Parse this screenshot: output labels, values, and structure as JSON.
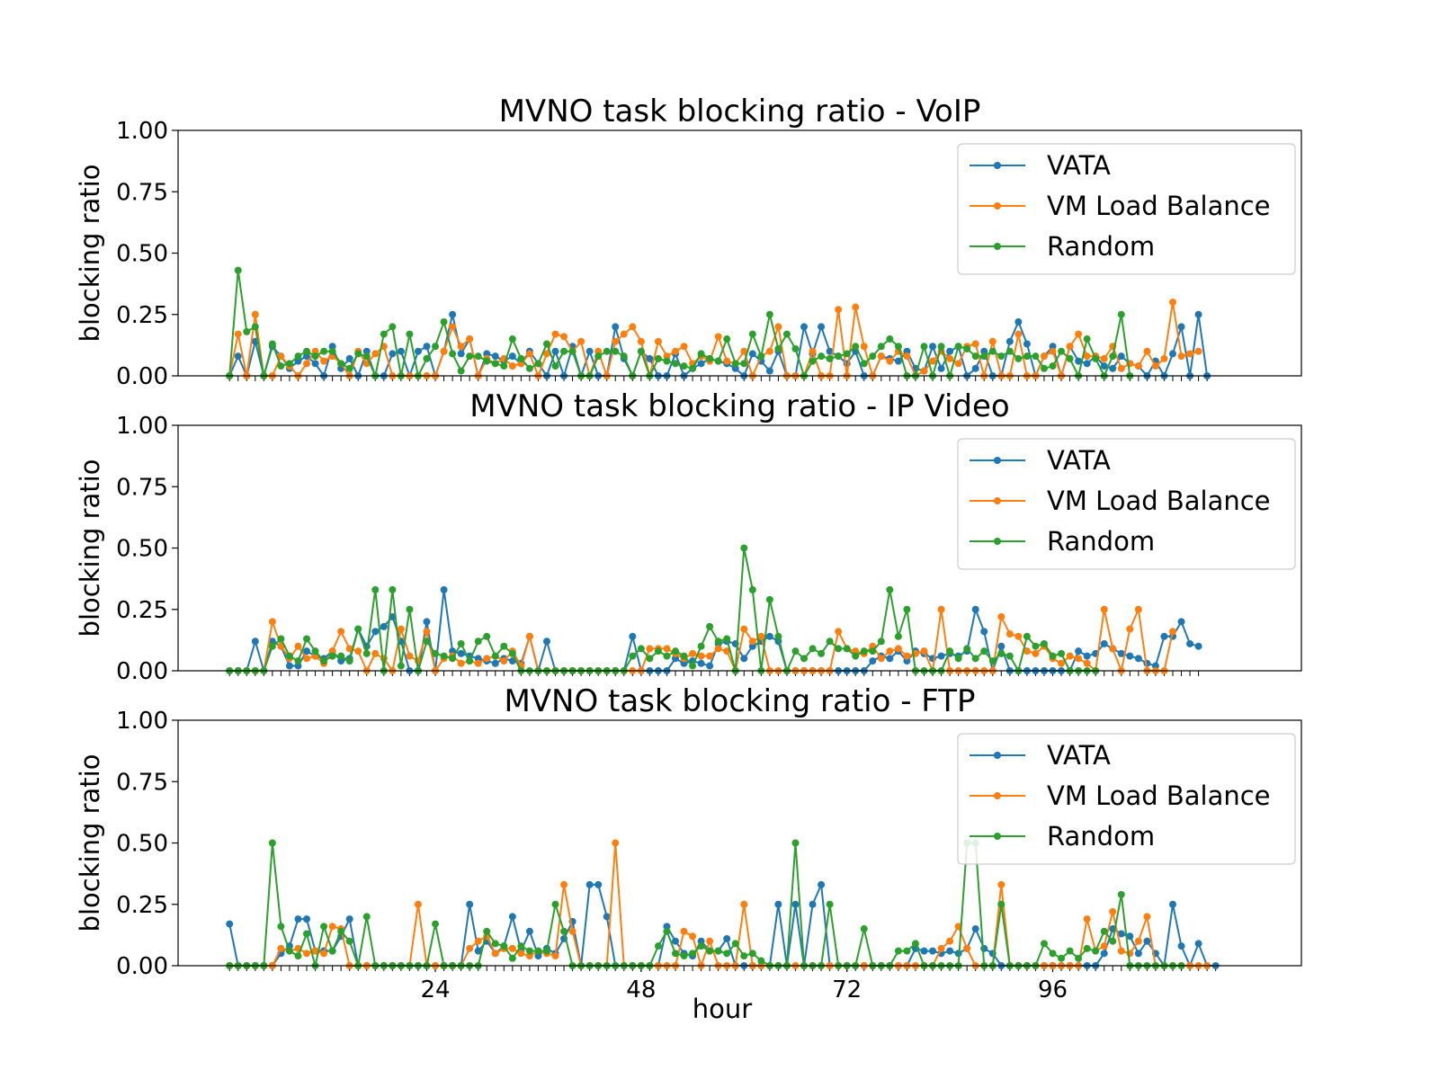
{
  "figure": {
    "xlabel": "hour",
    "ylabel": "blocking ratio",
    "x_ticks": [
      24,
      48,
      72,
      96
    ],
    "y_ticks": [
      "0.00",
      "0.25",
      "0.50",
      "0.75",
      "1.00"
    ]
  },
  "legend": [
    {
      "name": "VATA",
      "color": "#1f77b4"
    },
    {
      "name": "VM Load Balance",
      "color": "#ff7f0e"
    },
    {
      "name": "Random",
      "color": "#2ca02c"
    }
  ],
  "chart_data": [
    {
      "type": "line",
      "title": "MVNO task blocking ratio - VoIP",
      "xlabel": "",
      "ylabel": "blocking ratio",
      "xlim": [
        -6,
        125
      ],
      "ylim": [
        0,
        1
      ],
      "grid": false,
      "legend": "top-right",
      "x_start": 0,
      "x_step": 1,
      "series": [
        {
          "name": "VATA",
          "color": "#1f77b4",
          "values": [
            0,
            0.08,
            0,
            0.14,
            0,
            0.12,
            0.08,
            0.03,
            0.06,
            0.08,
            0.05,
            0,
            0.12,
            0.03,
            0.07,
            0,
            0.1,
            0,
            0,
            0.09,
            0.1,
            0,
            0.1,
            0.12,
            0,
            0.1,
            0.25,
            0.09,
            0.15,
            0,
            0.09,
            0.08,
            0.06,
            0.08,
            0.05,
            0.1,
            0.05,
            0,
            0.1,
            0,
            0.12,
            0,
            0.1,
            0,
            0,
            0.2,
            0.07,
            0,
            0.1,
            0.07,
            0,
            0,
            0.09,
            0,
            0.03,
            0.05,
            0.07,
            0.06,
            0.05,
            0.03,
            0,
            0.09,
            0.06,
            0.02,
            0.1,
            0,
            0,
            0.2,
            0.09,
            0.2,
            0.1,
            0.08,
            0.05,
            0.1,
            0,
            0,
            0.08,
            0.07,
            0.06,
            0.1,
            0.03,
            0.02,
            0.12,
            0.03,
            0.1,
            0.12,
            0,
            0.03,
            0.1,
            0,
            0,
            0.14,
            0.22,
            0.13,
            0,
            0.08,
            0.12,
            0,
            0.12,
            0.06,
            0.05,
            0.08,
            0.04,
            0.03,
            0.08,
            0.05,
            0.04,
            0,
            0.06,
            0,
            0.09,
            0.2,
            0,
            0.25,
            0
          ],
          "marker_radius": 4
        },
        {
          "name": "VM Load Balance",
          "color": "#ff7f0e",
          "values": [
            0,
            0.17,
            0,
            0.25,
            0,
            0,
            0.08,
            0.04,
            0,
            0.05,
            0.1,
            0.06,
            0.08,
            0.05,
            0,
            0.1,
            0.05,
            0.09,
            0.12,
            0,
            0,
            0,
            0,
            0,
            0,
            0.1,
            0.2,
            0.12,
            0.15,
            0,
            0.07,
            0.05,
            0.07,
            0.04,
            0.05,
            0.09,
            0,
            0.09,
            0.17,
            0.16,
            0.1,
            0.14,
            0,
            0.1,
            0,
            0.14,
            0.17,
            0.2,
            0.14,
            0,
            0.14,
            0.08,
            0.1,
            0.12,
            0.05,
            0.08,
            0.06,
            0.16,
            0.06,
            0.05,
            0.1,
            0,
            0.08,
            0.1,
            0.2,
            0,
            0,
            0,
            0.1,
            0,
            0,
            0.27,
            0,
            0.28,
            0.12,
            0,
            0.08,
            0.06,
            0.1,
            0.08,
            0,
            0.02,
            0.06,
            0.1,
            0.07,
            0.05,
            0.12,
            0.13,
            0,
            0.14,
            0,
            0,
            0.17,
            0,
            0,
            0.08,
            0.1,
            0,
            0.12,
            0.17,
            0.08,
            0.08,
            0.07,
            0.12,
            0.03,
            0.05,
            0.04,
            0.1,
            0.04,
            0.07,
            0.3,
            0.08,
            0.09,
            0.1
          ],
          "marker_radius": 4
        },
        {
          "name": "Random",
          "color": "#2ca02c",
          "values": [
            0,
            0.43,
            0.18,
            0.2,
            0,
            0.13,
            0.04,
            0.05,
            0.08,
            0.1,
            0.08,
            0.1,
            0.1,
            0.05,
            0.03,
            0.09,
            0.08,
            0,
            0.17,
            0.2,
            0,
            0.17,
            0,
            0.07,
            0.12,
            0.22,
            0.09,
            0.02,
            0.08,
            0.08,
            0.06,
            0.05,
            0.04,
            0.15,
            0.07,
            0.03,
            0.05,
            0.13,
            0.04,
            0.1,
            0.1,
            0,
            0,
            0.08,
            0.1,
            0.1,
            0.08,
            0,
            0.1,
            0,
            0.07,
            0.06,
            0.05,
            0.04,
            0.03,
            0.09,
            0.07,
            0.06,
            0.15,
            0.05,
            0.05,
            0.17,
            0.08,
            0.25,
            0.11,
            0.17,
            0.11,
            0,
            0.06,
            0.08,
            0.07,
            0.08,
            0.09,
            0.12,
            0.05,
            0.08,
            0.12,
            0.15,
            0.12,
            0,
            0,
            0.12,
            0,
            0.12,
            0,
            0.12,
            0.11,
            0.08,
            0.08,
            0.1,
            0.08,
            0.1,
            0.07,
            0.08,
            0.08,
            0.03,
            0.04,
            0.1,
            0.07,
            0,
            0.15,
            0.07,
            0,
            0.08,
            0.25,
            0
          ],
          "marker_radius": 4
        }
      ]
    },
    {
      "type": "line",
      "title": "MVNO task blocking ratio - IP Video",
      "xlabel": "",
      "ylabel": "blocking ratio",
      "xlim": [
        -6,
        125
      ],
      "ylim": [
        0,
        1
      ],
      "grid": false,
      "legend": "top-right",
      "x_start": 0,
      "x_step": 1,
      "series": [
        {
          "name": "VATA",
          "color": "#1f77b4",
          "values": [
            0,
            0,
            0,
            0.12,
            0,
            0.12,
            0.1,
            0.02,
            0.02,
            0.08,
            0.06,
            0.05,
            0.08,
            0.04,
            0.05,
            0.17,
            0.1,
            0.16,
            0.18,
            0.22,
            0.12,
            0,
            0,
            0.2,
            0,
            0.33,
            0.08,
            0.07,
            0.06,
            0.05,
            0.04,
            0.03,
            0.05,
            0.04,
            0.03,
            0.14,
            0,
            0.12,
            0,
            0,
            0,
            0,
            0,
            0,
            0,
            0,
            0,
            0.14,
            0,
            0,
            0,
            0,
            0.05,
            0.03,
            0.04,
            0.03,
            0.02,
            0.11,
            0.12,
            0.11,
            0.05,
            0.1,
            0.12,
            0.14,
            0.12,
            0,
            0,
            0,
            0,
            0,
            0,
            0,
            0,
            0,
            0,
            0.04,
            0.06,
            0.05,
            0.08,
            0.04,
            0.08,
            0.07,
            0.05,
            0.06,
            0.07,
            0.06,
            0.08,
            0.25,
            0.16,
            0,
            0.1,
            0,
            0,
            0,
            0,
            0,
            0,
            0,
            0,
            0.08,
            0.06,
            0.07,
            0.11,
            0.09,
            0.07,
            0.06,
            0.05,
            0.03,
            0.02,
            0.14,
            0.14,
            0.2,
            0.11,
            0.1
          ],
          "marker_radius": 4
        },
        {
          "name": "VM Load Balance",
          "color": "#ff7f0e",
          "values": [
            0,
            0,
            0,
            0,
            0,
            0.2,
            0.1,
            0.05,
            0.1,
            0.05,
            0.06,
            0.03,
            0.08,
            0.16,
            0.09,
            0.08,
            0,
            0.07,
            0.05,
            0,
            0.17,
            0.06,
            0.04,
            0.16,
            0,
            0.05,
            0.06,
            0.03,
            0.04,
            0.03,
            0.05,
            0.06,
            0.04,
            0.08,
            0.02,
            0.14,
            0,
            0,
            0,
            0,
            0,
            0,
            0,
            0,
            0,
            0,
            0,
            0,
            0,
            0.09,
            0.09,
            0.09,
            0.07,
            0.05,
            0.07,
            0.06,
            0.06,
            0.09,
            0.08,
            0,
            0.17,
            0.12,
            0.14,
            0,
            0,
            0,
            0,
            0,
            0,
            0,
            0,
            0.16,
            0.09,
            0.08,
            0.07,
            0.1,
            0.05,
            0.08,
            0.09,
            0.06,
            0.07,
            0.08,
            0,
            0.25,
            0,
            0,
            0,
            0,
            0,
            0,
            0.22,
            0.15,
            0.14,
            0.08,
            0.07,
            0.1,
            0.05,
            0.03,
            0.06,
            0.05,
            0.03,
            0,
            0.25,
            0.09,
            0,
            0.17,
            0.25,
            0,
            0,
            0,
            0.16
          ],
          "marker_radius": 4
        },
        {
          "name": "Random",
          "color": "#2ca02c",
          "values": [
            0,
            0,
            0,
            0,
            0,
            0.1,
            0.13,
            0.06,
            0.04,
            0.13,
            0.08,
            0.04,
            0.06,
            0.06,
            0.04,
            0.17,
            0.07,
            0.33,
            0,
            0.33,
            0.02,
            0.25,
            0,
            0.12,
            0.07,
            0.06,
            0.05,
            0.11,
            0.04,
            0.12,
            0.14,
            0.06,
            0.1,
            0.07,
            0,
            0,
            0,
            0,
            0,
            0,
            0,
            0,
            0,
            0,
            0,
            0,
            0,
            0.06,
            0.09,
            0.05,
            0.08,
            0.06,
            0.08,
            0.06,
            0.02,
            0.1,
            0.18,
            0.12,
            0.13,
            0,
            0.5,
            0.33,
            0,
            0.29,
            0.14,
            0,
            0.08,
            0.05,
            0.09,
            0.07,
            0.12,
            0.09,
            0.09,
            0.06,
            0.08,
            0.08,
            0.12,
            0.33,
            0.14,
            0.25,
            0,
            0,
            0,
            0,
            0.08,
            0.05,
            0.09,
            0.05,
            0.08,
            0.04,
            0.07,
            0.06,
            0,
            0.14,
            0.1,
            0.11,
            0.06,
            0.07,
            0,
            0,
            0,
            0
          ],
          "marker_radius": 4
        }
      ]
    },
    {
      "type": "line",
      "title": "MVNO task blocking ratio - FTP",
      "xlabel": "hour",
      "ylabel": "blocking ratio",
      "xlim": [
        -6,
        125
      ],
      "ylim": [
        0,
        1
      ],
      "grid": false,
      "legend": "top-right",
      "x_start": 0,
      "x_step": 1,
      "series": [
        {
          "name": "VATA",
          "color": "#1f77b4",
          "values": [
            0.17,
            0,
            0,
            0,
            0,
            0,
            0.05,
            0.08,
            0.19,
            0.19,
            0.06,
            0.06,
            0.06,
            0.12,
            0.19,
            0,
            0,
            0,
            0,
            0,
            0,
            0,
            0,
            0,
            0,
            0,
            0,
            0,
            0.25,
            0.06,
            0.1,
            0.05,
            0.08,
            0.2,
            0.06,
            0.14,
            0.04,
            0.07,
            0.05,
            0.11,
            0.18,
            0,
            0.33,
            0.33,
            0.2,
            0,
            0,
            0,
            0,
            0,
            0,
            0.16,
            0.1,
            0.05,
            0.04,
            0.1,
            0.06,
            0.06,
            0.11,
            0,
            0,
            0,
            0,
            0,
            0.25,
            0,
            0.25,
            0,
            0.25,
            0.33,
            0,
            0,
            0,
            0,
            0,
            0,
            0,
            0,
            0,
            0,
            0.07,
            0.06,
            0.06,
            0.05,
            0.06,
            0.05,
            0.07,
            0.15,
            0.07,
            0.05,
            0,
            0,
            0,
            0,
            0,
            0,
            0,
            0,
            0,
            0,
            0,
            0,
            0.05,
            0.15,
            0.13,
            0.12,
            0.05,
            0.1,
            0.05,
            0,
            0.25,
            0.08,
            0,
            0.09,
            0,
            0
          ],
          "marker_radius": 4
        },
        {
          "name": "VM Load Balance",
          "color": "#ff7f0e",
          "values": [
            0,
            0,
            0,
            0,
            0,
            0,
            0.07,
            0.06,
            0.07,
            0.05,
            0.06,
            0.05,
            0.16,
            0.15,
            0,
            0,
            0,
            0,
            0,
            0,
            0,
            0,
            0.25,
            0,
            0,
            0,
            0,
            0,
            0.07,
            0.1,
            0.12,
            0.05,
            0.07,
            0.07,
            0.05,
            0.04,
            0.06,
            0.05,
            0.04,
            0.33,
            0.14,
            0,
            0,
            0,
            0,
            0.5,
            0,
            0,
            0,
            0,
            0,
            0,
            0,
            0.14,
            0.12,
            0,
            0.1,
            0,
            0,
            0,
            0.25,
            0,
            0,
            0,
            0,
            0,
            0,
            0,
            0,
            0,
            0,
            0,
            0,
            0,
            0,
            0,
            0,
            0,
            0,
            0,
            0,
            0,
            0,
            0.07,
            0.1,
            0.16,
            0.07,
            0,
            0,
            0,
            0.33,
            0,
            0,
            0,
            0,
            0,
            0,
            0,
            0,
            0,
            0.19,
            0.06,
            0.08,
            0.22,
            0.06,
            0.05,
            0.1,
            0.2,
            0,
            0,
            0,
            0,
            0,
            0,
            0
          ],
          "marker_radius": 4
        },
        {
          "name": "Random",
          "color": "#2ca02c",
          "values": [
            0,
            0,
            0,
            0,
            0,
            0.5,
            0.16,
            0.06,
            0.04,
            0.13,
            0,
            0.16,
            0.06,
            0.14,
            0.1,
            0,
            0.2,
            0,
            0,
            0,
            0,
            0,
            0,
            0,
            0.17,
            0,
            0,
            0,
            0,
            0,
            0.14,
            0.09,
            0.08,
            0.03,
            0.08,
            0.06,
            0.06,
            0.06,
            0.25,
            0.14,
            0,
            0,
            0,
            0,
            0,
            0,
            0,
            0,
            0,
            0,
            0.08,
            0.14,
            0.05,
            0.04,
            0.05,
            0.08,
            0.06,
            0.06,
            0.05,
            0.09,
            0.04,
            0.05,
            0.02,
            0,
            0,
            0,
            0.5,
            0,
            0,
            0,
            0.25,
            0,
            0,
            0,
            0.15,
            0,
            0,
            0,
            0.06,
            0.06,
            0.09,
            0,
            0,
            0,
            0,
            0,
            0.5,
            0.5,
            0,
            0,
            0.25,
            0,
            0,
            0,
            0,
            0.09,
            0.05,
            0.03,
            0.06,
            0.03,
            0.07,
            0.06,
            0.14,
            0.1,
            0.29,
            0,
            0,
            0,
            0,
            0,
            0,
            0
          ],
          "marker_radius": 4
        }
      ]
    }
  ]
}
